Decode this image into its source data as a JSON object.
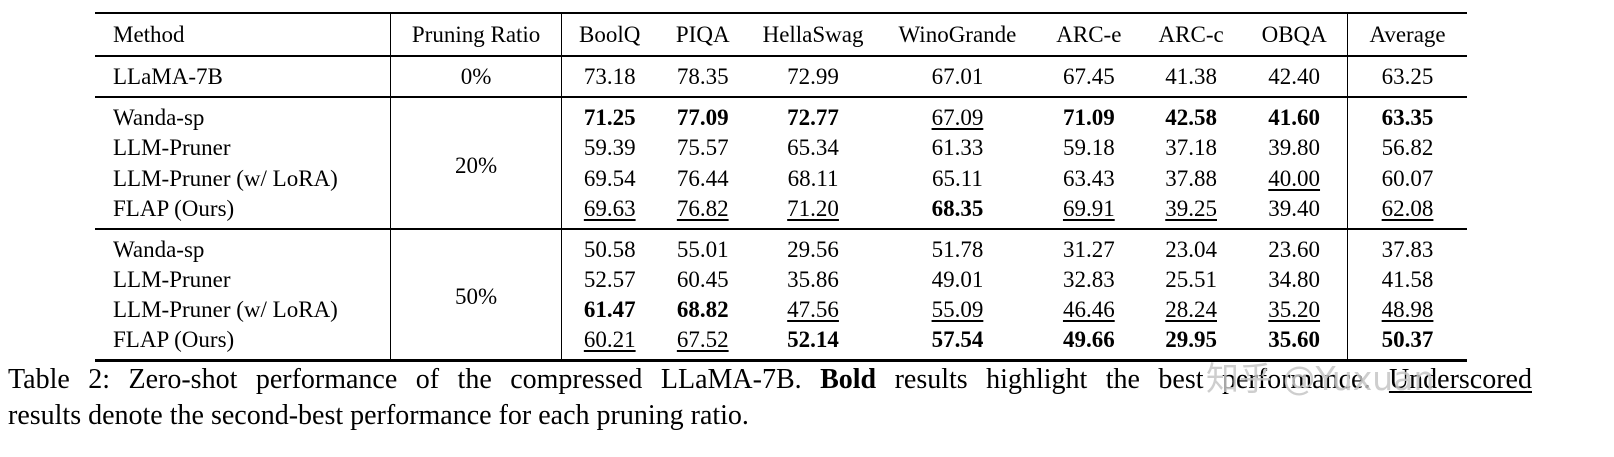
{
  "table": {
    "columns": [
      {
        "label": "Method"
      },
      {
        "label": "Pruning Ratio"
      },
      {
        "label": "BoolQ"
      },
      {
        "label": "PIQA"
      },
      {
        "label": "HellaSwag"
      },
      {
        "label": "WinoGrande"
      },
      {
        "label": "ARC-e"
      },
      {
        "label": "ARC-c"
      },
      {
        "label": "OBQA"
      },
      {
        "label": "Average"
      }
    ],
    "groups": [
      {
        "pruning_ratio": "0%",
        "rows": [
          {
            "method": "LLaMA-7B",
            "cells": [
              [
                "73.18",
                "n"
              ],
              [
                "78.35",
                "n"
              ],
              [
                "72.99",
                "n"
              ],
              [
                "67.01",
                "n"
              ],
              [
                "67.45",
                "n"
              ],
              [
                "41.38",
                "n"
              ],
              [
                "42.40",
                "n"
              ],
              [
                "63.25",
                "n"
              ]
            ]
          }
        ]
      },
      {
        "pruning_ratio": "20%",
        "rows": [
          {
            "method": "Wanda-sp",
            "cells": [
              [
                "71.25",
                "b"
              ],
              [
                "77.09",
                "b"
              ],
              [
                "72.77",
                "b"
              ],
              [
                "67.09",
                "u"
              ],
              [
                "71.09",
                "b"
              ],
              [
                "42.58",
                "b"
              ],
              [
                "41.60",
                "b"
              ],
              [
                "63.35",
                "b"
              ]
            ]
          },
          {
            "method": "LLM-Pruner",
            "cells": [
              [
                "59.39",
                "n"
              ],
              [
                "75.57",
                "n"
              ],
              [
                "65.34",
                "n"
              ],
              [
                "61.33",
                "n"
              ],
              [
                "59.18",
                "n"
              ],
              [
                "37.18",
                "n"
              ],
              [
                "39.80",
                "n"
              ],
              [
                "56.82",
                "n"
              ]
            ]
          },
          {
            "method": "LLM-Pruner (w/ LoRA)",
            "cells": [
              [
                "69.54",
                "n"
              ],
              [
                "76.44",
                "n"
              ],
              [
                "68.11",
                "n"
              ],
              [
                "65.11",
                "n"
              ],
              [
                "63.43",
                "n"
              ],
              [
                "37.88",
                "n"
              ],
              [
                "40.00",
                "u"
              ],
              [
                "60.07",
                "n"
              ]
            ]
          },
          {
            "method": "FLAP (Ours)",
            "cells": [
              [
                "69.63",
                "u"
              ],
              [
                "76.82",
                "u"
              ],
              [
                "71.20",
                "u"
              ],
              [
                "68.35",
                "b"
              ],
              [
                "69.91",
                "u"
              ],
              [
                "39.25",
                "u"
              ],
              [
                "39.40",
                "n"
              ],
              [
                "62.08",
                "u"
              ]
            ]
          }
        ]
      },
      {
        "pruning_ratio": "50%",
        "rows": [
          {
            "method": "Wanda-sp",
            "cells": [
              [
                "50.58",
                "n"
              ],
              [
                "55.01",
                "n"
              ],
              [
                "29.56",
                "n"
              ],
              [
                "51.78",
                "n"
              ],
              [
                "31.27",
                "n"
              ],
              [
                "23.04",
                "n"
              ],
              [
                "23.60",
                "n"
              ],
              [
                "37.83",
                "n"
              ]
            ]
          },
          {
            "method": "LLM-Pruner",
            "cells": [
              [
                "52.57",
                "n"
              ],
              [
                "60.45",
                "n"
              ],
              [
                "35.86",
                "n"
              ],
              [
                "49.01",
                "n"
              ],
              [
                "32.83",
                "n"
              ],
              [
                "25.51",
                "n"
              ],
              [
                "34.80",
                "n"
              ],
              [
                "41.58",
                "n"
              ]
            ]
          },
          {
            "method": "LLM-Pruner (w/ LoRA)",
            "cells": [
              [
                "61.47",
                "b"
              ],
              [
                "68.82",
                "b"
              ],
              [
                "47.56",
                "u"
              ],
              [
                "55.09",
                "u"
              ],
              [
                "46.46",
                "u"
              ],
              [
                "28.24",
                "u"
              ],
              [
                "35.20",
                "u"
              ],
              [
                "48.98",
                "u"
              ]
            ]
          },
          {
            "method": "FLAP (Ours)",
            "cells": [
              [
                "60.21",
                "u"
              ],
              [
                "67.52",
                "u"
              ],
              [
                "52.14",
                "b"
              ],
              [
                "57.54",
                "b"
              ],
              [
                "49.66",
                "b"
              ],
              [
                "29.95",
                "b"
              ],
              [
                "35.60",
                "b"
              ],
              [
                "50.37",
                "b"
              ]
            ]
          }
        ]
      }
    ]
  },
  "caption": {
    "lines": [
      [
        {
          "text": "Table 2: Zero-shot performance of the compressed LLaMA-7B. ",
          "style": "n"
        },
        {
          "text": "Bold",
          "style": "b"
        },
        {
          "text": " results highlight the best performance. ",
          "style": "n"
        },
        {
          "text": "Underscored",
          "style": "u"
        }
      ],
      [
        {
          "text": "results denote the second-best performance for each pruning ratio.",
          "style": "n"
        }
      ]
    ]
  },
  "watermark": {
    "text": "知乎 @Yuxuan",
    "color": "#c6c6c6"
  }
}
